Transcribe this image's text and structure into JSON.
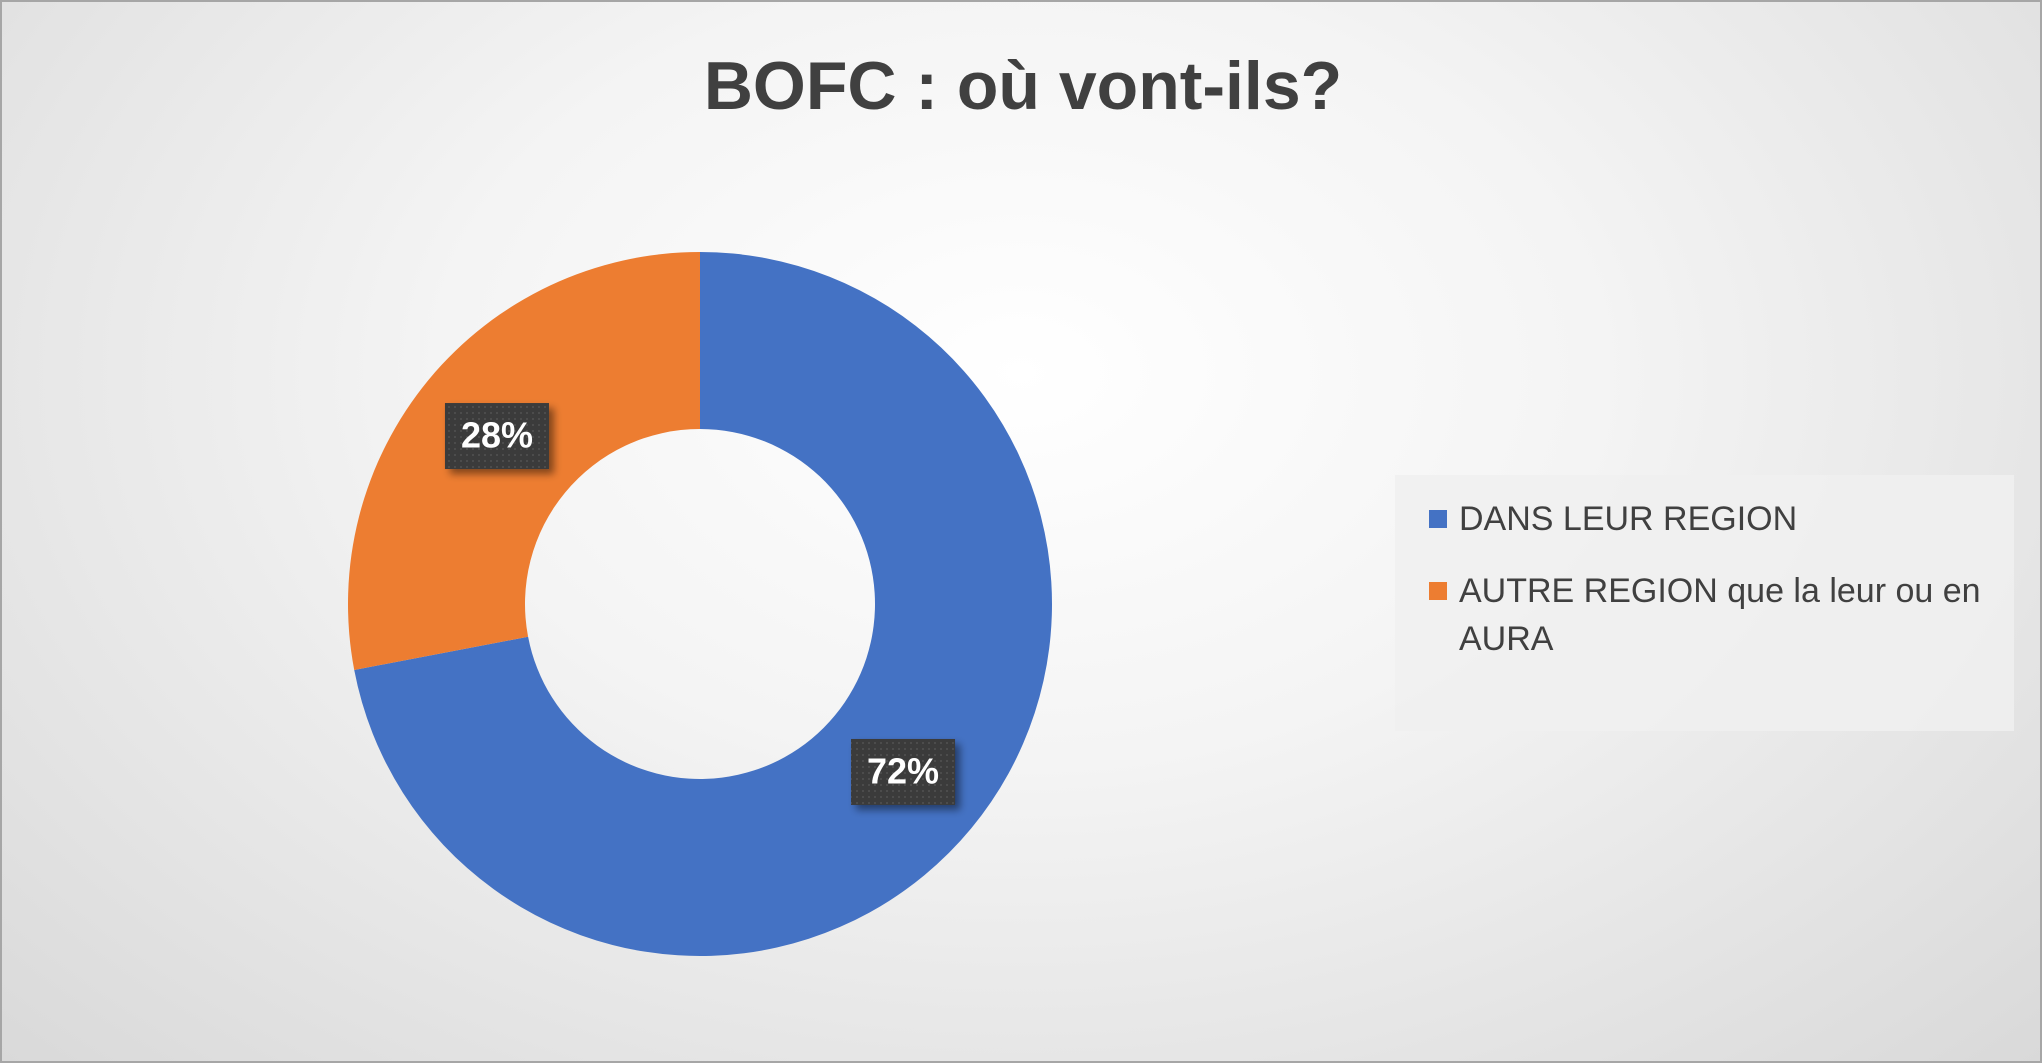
{
  "chart_data": {
    "type": "donut",
    "title": "BOFC : où vont-ils?",
    "categories": [
      "DANS LEUR REGION",
      "AUTRE REGION que la leur ou en AURA"
    ],
    "values": [
      72,
      28
    ],
    "value_labels": [
      "72%",
      "28%"
    ],
    "colors": [
      "#4472c4",
      "#ed7d31"
    ],
    "legend": "right"
  }
}
